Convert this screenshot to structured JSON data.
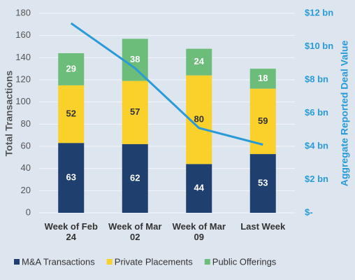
{
  "chart_data": {
    "type": "bar",
    "stacked": true,
    "categories": [
      "Week of Feb 24",
      "Week of Mar 02",
      "Week of Mar 09",
      "Last Week"
    ],
    "series": [
      {
        "name": "M&A Transactions",
        "color": "#1f3f6e",
        "label_color": "#ffffff",
        "values": [
          63,
          62,
          44,
          53
        ]
      },
      {
        "name": "Private Placements",
        "color": "#f9d12a",
        "label_color": "#333333",
        "values": [
          52,
          57,
          80,
          59
        ]
      },
      {
        "name": "Public Offerings",
        "color": "#6cbd7a",
        "label_color": "#ffffff",
        "values": [
          29,
          38,
          24,
          18
        ]
      },
      {
        "name": "Aggregate Reported Deal Value",
        "type": "line",
        "axis": "y2",
        "color": "#2a9ad8",
        "in_legend": false,
        "values": [
          11.4,
          8.7,
          5.1,
          4.1
        ]
      }
    ],
    "ylabel": "Total Transactions",
    "y2label": "Aggregate Reported Deal Value",
    "ylim": [
      0,
      180
    ],
    "yticks": [
      0,
      20,
      40,
      60,
      80,
      100,
      120,
      140,
      160,
      180
    ],
    "y2lim": [
      0,
      12
    ],
    "y2ticks": [
      {
        "value": 0,
        "label": "$-"
      },
      {
        "value": 2,
        "label": "$2 bn"
      },
      {
        "value": 4,
        "label": "$4 bn"
      },
      {
        "value": 6,
        "label": "$6 bn"
      },
      {
        "value": 8,
        "label": "$8 bn"
      },
      {
        "value": 10,
        "label": "$10 bn"
      },
      {
        "value": 12,
        "label": "$12 bn"
      }
    ],
    "grid": true,
    "legend": "bottom"
  }
}
